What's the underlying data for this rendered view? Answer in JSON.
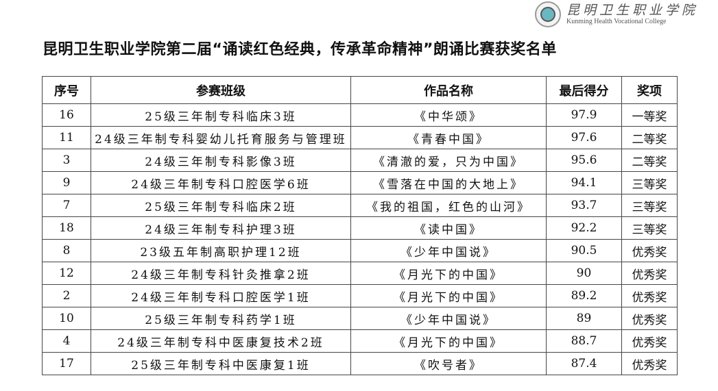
{
  "logo": {
    "cn": "昆明卫生职业学院",
    "en": "Kunming Health Vocational College"
  },
  "title": "昆明卫生职业学院第二届“诵读红色经典，传承革命精神”朗诵比赛获奖名单",
  "table": {
    "headers": [
      "序号",
      "参赛班级",
      "作品名称",
      "最后得分",
      "奖项"
    ],
    "rows": [
      [
        "16",
        "25级三年制专科临床3班",
        "《中华颂》",
        "97.9",
        "一等奖"
      ],
      [
        "11",
        "24级三年制专科婴幼儿托育服务与管理班",
        "《青春中国》",
        "97.6",
        "二等奖"
      ],
      [
        "3",
        "24级三年制专科影像3班",
        "《清澈的爱，只为中国》",
        "95.6",
        "二等奖"
      ],
      [
        "9",
        "24级三年制专科口腔医学6班",
        "《雪落在中国的大地上》",
        "94.1",
        "三等奖"
      ],
      [
        "7",
        "25级三年制专科临床2班",
        "《我的祖国，红色的山河》",
        "93.7",
        "三等奖"
      ],
      [
        "18",
        "24级三年制专科护理3班",
        "《读中国》",
        "92.2",
        "三等奖"
      ],
      [
        "8",
        "23级五年制高职护理12班",
        "《少年中国说》",
        "90.5",
        "优秀奖"
      ],
      [
        "12",
        "24级三年制专科针灸推拿2班",
        "《月光下的中国》",
        "90",
        "优秀奖"
      ],
      [
        "2",
        "24级三年制专科口腔医学1班",
        "《月光下的中国》",
        "89.2",
        "优秀奖"
      ],
      [
        "10",
        "25级三年制专科药学1班",
        "《少年中国说》",
        "89",
        "优秀奖"
      ],
      [
        "4",
        "24级三年制专科中医康复技术2班",
        "《月光下的中国》",
        "88.7",
        "优秀奖"
      ],
      [
        "17",
        "25级三年制专科中医康复1班",
        "《吹号者》",
        "87.4",
        "优秀奖"
      ]
    ]
  }
}
